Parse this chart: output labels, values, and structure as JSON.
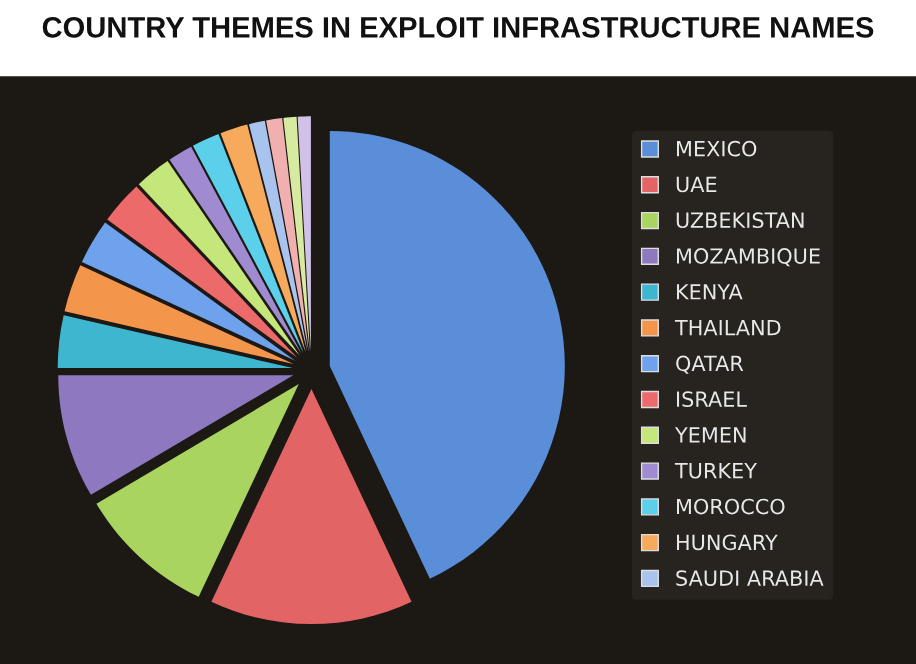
{
  "chart_data": {
    "type": "pie",
    "title": "COUNTRY THEMES IN EXPLOIT INFRASTRUCTURE NAMES",
    "categories": [
      "MEXICO",
      "UAE",
      "UZBEKISTAN",
      "MOZAMBIQUE",
      "KENYA",
      "THAILAND",
      "QATAR",
      "ISRAEL",
      "YEMEN",
      "TURKEY",
      "MOROCCO",
      "HUNGARY",
      "SAUDI ARABIA",
      null,
      null,
      null
    ],
    "values": [
      43,
      14,
      9.5,
      8.5,
      3.6,
      3.3,
      3.1,
      3,
      2.5,
      1.7,
      1.9,
      1.9,
      1.1,
      1.1,
      0.9,
      0.9
    ],
    "colors": [
      "#5b8ed8",
      "#e36465",
      "#a9d45f",
      "#8e78c0",
      "#3fb6d0",
      "#f3954a",
      "#6fa2ec",
      "#ec6a6a",
      "#c4e67a",
      "#a08ad0",
      "#5cd0ea",
      "#f7a95c",
      "#a9c3ef",
      "#f0b0b0",
      "#d6eba0",
      "#cfc2e6"
    ],
    "legend": "right"
  }
}
